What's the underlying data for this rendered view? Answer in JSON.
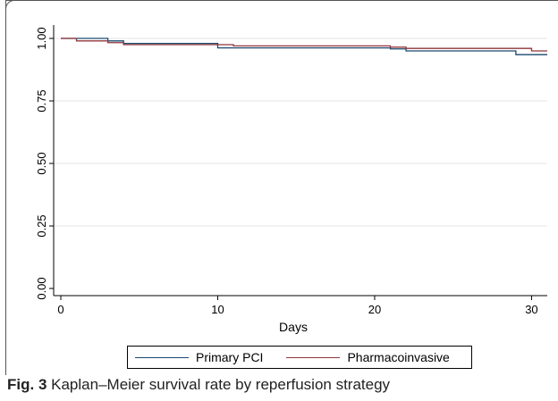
{
  "caption": {
    "prefix": "Fig. 3",
    "text": "Kaplan–Meier survival rate by reperfusion strategy"
  },
  "chart_data": {
    "type": "line",
    "step": true,
    "xlabel": "Days",
    "ylabel": "",
    "xlim": [
      0,
      31
    ],
    "ylim": [
      0,
      1
    ],
    "xticks": [
      0,
      10,
      20,
      30
    ],
    "yticks": [
      0,
      0.25,
      0.5,
      0.75,
      1
    ],
    "ytick_labels": [
      "0.00",
      "0.25",
      "0.50",
      "0.75",
      "1.00"
    ],
    "grid": true,
    "legend_position": "bottom",
    "series": [
      {
        "name": "Primary PCI",
        "color": "#1a476f",
        "x": [
          0,
          3,
          4,
          10,
          21,
          22,
          29,
          31
        ],
        "y": [
          1.0,
          0.99,
          0.98,
          0.962,
          0.958,
          0.95,
          0.935,
          0.935
        ]
      },
      {
        "name": "Pharmacoinvasive",
        "color": "#90353b",
        "x": [
          0,
          1,
          3,
          4,
          11,
          21,
          22,
          30,
          31
        ],
        "y": [
          1.0,
          0.99,
          0.983,
          0.975,
          0.97,
          0.965,
          0.96,
          0.95,
          0.95
        ]
      }
    ]
  }
}
